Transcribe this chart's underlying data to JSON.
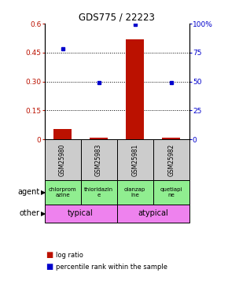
{
  "title": "GDS775 / 22223",
  "samples": [
    "GSM25980",
    "GSM25983",
    "GSM25981",
    "GSM25982"
  ],
  "log_ratio": [
    0.055,
    0.007,
    0.52,
    0.008
  ],
  "percentile_pct": [
    78,
    49,
    99,
    49
  ],
  "agents": [
    "chlorprom\nazine",
    "thioridazin\ne",
    "olanzap\nine",
    "quetiapi\nne"
  ],
  "bar_color": "#bb1100",
  "dot_color": "#0000cc",
  "ylim_left": [
    0,
    0.6
  ],
  "ylim_right": [
    0,
    100
  ],
  "yticks_left": [
    0,
    0.15,
    0.3,
    0.45,
    0.6
  ],
  "yticks_right": [
    0,
    25,
    50,
    75,
    100
  ],
  "ytick_labels_left": [
    "0",
    "0.15",
    "0.30",
    "0.45",
    "0.6"
  ],
  "ytick_labels_right": [
    "0",
    "25",
    "50",
    "75",
    "100%"
  ],
  "legend_bar": "log ratio",
  "legend_dot": "percentile rank within the sample",
  "bg_color": "#ffffff"
}
